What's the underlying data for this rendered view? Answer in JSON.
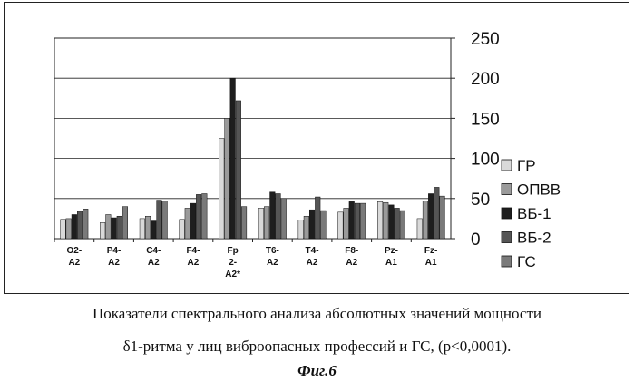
{
  "chart_data": {
    "type": "bar",
    "categories": [
      [
        "O2-",
        "A2"
      ],
      [
        "P4-",
        "A2"
      ],
      [
        "C4-",
        "A2"
      ],
      [
        "F4-",
        "A2"
      ],
      [
        "Fp",
        "2-",
        "A2*"
      ],
      [
        "T6-",
        "A2"
      ],
      [
        "T4-",
        "A2"
      ],
      [
        "F8-",
        "A2"
      ],
      [
        "Pz-",
        "A1"
      ],
      [
        "Fz-",
        "A1"
      ]
    ],
    "ylim": [
      0,
      250
    ],
    "yticks": [
      0,
      50,
      100,
      150,
      200,
      250
    ],
    "grid": true,
    "legend_position": "right",
    "series": [
      {
        "name": "ГР",
        "color": "#d9d9d9",
        "values": [
          24,
          20,
          25,
          24,
          125,
          38,
          23,
          33,
          46,
          25
        ]
      },
      {
        "name": "ОПВВ",
        "color": "#9a9a9a",
        "values": [
          25,
          30,
          28,
          38,
          150,
          40,
          28,
          38,
          45,
          47
        ]
      },
      {
        "name": "ВБ-1",
        "color": "#1e1e1e",
        "values": [
          30,
          26,
          22,
          44,
          200,
          58,
          36,
          46,
          42,
          56
        ]
      },
      {
        "name": "ВБ-2",
        "color": "#555555",
        "values": [
          34,
          28,
          48,
          55,
          172,
          56,
          52,
          44,
          38,
          64
        ]
      },
      {
        "name": "ГС",
        "color": "#7a7a7a",
        "values": [
          37,
          40,
          47,
          56,
          40,
          50,
          35,
          44,
          35,
          53
        ]
      }
    ],
    "values": [
      [
        24,
        25,
        30,
        34,
        37
      ],
      [
        20,
        30,
        26,
        28,
        40
      ],
      [
        25,
        28,
        22,
        48,
        47
      ],
      [
        24,
        38,
        44,
        55,
        56
      ],
      [
        125,
        150,
        200,
        172,
        40
      ],
      [
        38,
        40,
        58,
        56,
        50
      ],
      [
        23,
        28,
        36,
        52,
        35
      ],
      [
        33,
        38,
        46,
        44,
        44
      ],
      [
        46,
        45,
        42,
        38,
        35
      ],
      [
        25,
        47,
        56,
        64,
        53
      ]
    ]
  },
  "caption": {
    "line1": "Показатели спектрального анализа абсолютных значений мощности",
    "line2": "δ1-ритма у лиц виброопасных профессий и ГС, (p<0,0001).",
    "figure_label": "Фиг.6"
  }
}
